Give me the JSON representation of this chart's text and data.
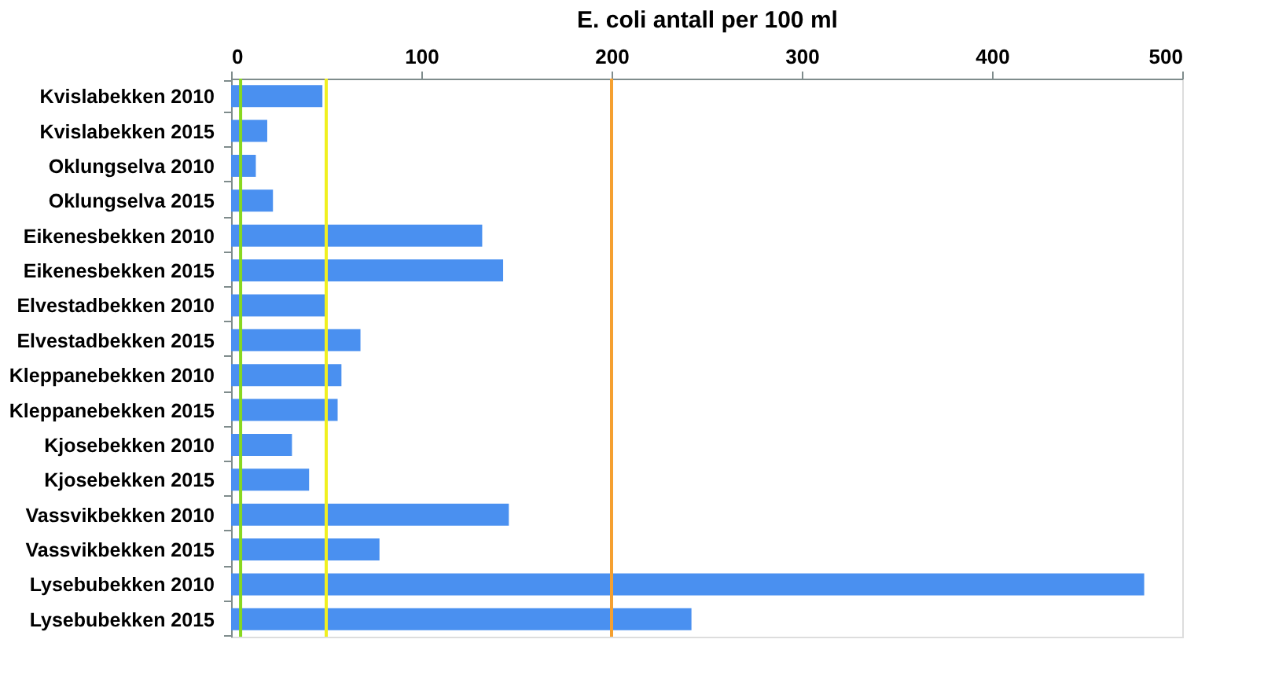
{
  "chart_data": {
    "type": "bar",
    "orientation": "horizontal",
    "xlabel": "E. coli antall per 100 ml",
    "categories": [
      "Kvislabekken 2010",
      "Kvislabekken 2015",
      "Oklungselva 2010",
      "Oklungselva 2015",
      "Eikenesbekken 2010",
      "Eikenesbekken 2015",
      "Elvestadbekken 2010",
      "Elvestadbekken 2015",
      "Kleppanebekken 2010",
      "Kleppanebekken 2015",
      "Kjosebekken 2010",
      "Kjosebekken 2015",
      "Vassvikbekken 2010",
      "Vassvikbekken 2015",
      "Lysebubekken 2010",
      "Lysebubekken 2015"
    ],
    "values": [
      48,
      19,
      13,
      22,
      132,
      143,
      50,
      68,
      58,
      56,
      32,
      41,
      146,
      78,
      480,
      242
    ],
    "color": "#4a90f0",
    "xlim": [
      0,
      500
    ],
    "xticks": [
      0,
      100,
      200,
      300,
      400,
      500
    ],
    "grid": false,
    "ref_lines": [
      {
        "axis": "x",
        "value": 5,
        "color": "#88d820"
      },
      {
        "axis": "x",
        "value": 50,
        "color": "#f0f020"
      },
      {
        "axis": "x",
        "value": 200,
        "color": "#f5a030"
      }
    ]
  }
}
